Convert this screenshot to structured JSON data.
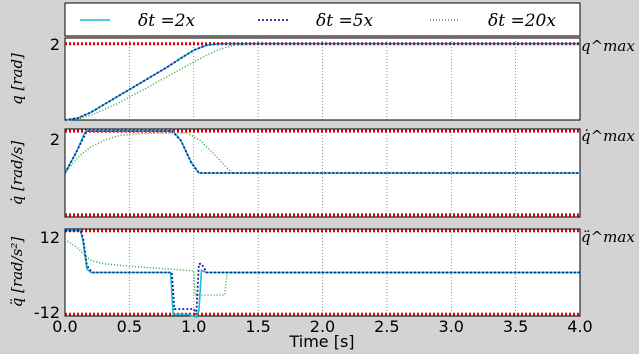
{
  "colors": {
    "background": "#d3d3d3",
    "plot_background": "#ffffff",
    "dt2": "#17becf",
    "dt5": "#1f1f9f",
    "dt20": "#2ca02c",
    "limit": "#dd0000",
    "grid": "#666666"
  },
  "legend": {
    "entries": [
      {
        "label": "δt =2x",
        "style": "solid",
        "color": "#17becf"
      },
      {
        "label": "δt =5x",
        "style": "dotted",
        "color": "#1f1f9f"
      },
      {
        "label": "δt =20x",
        "style": "dotted",
        "color": "#2ca02c"
      }
    ]
  },
  "xaxis": {
    "label": "Time [s]",
    "ticks": [
      "0.0",
      "0.5",
      "1.0",
      "1.5",
      "2.0",
      "2.5",
      "3.0",
      "3.5",
      "4.0"
    ],
    "range": [
      0,
      4
    ]
  },
  "chart_data": [
    {
      "type": "line",
      "ylabel": "q [rad]",
      "yticks": [
        "2"
      ],
      "ylim": [
        0,
        2.15
      ],
      "limit_label": "q^max",
      "limits": [
        2.0
      ],
      "grid": "vertical",
      "series": [
        {
          "name": "δt =2x",
          "x": [
            0,
            0.1,
            0.2,
            0.4,
            0.6,
            0.8,
            0.9,
            1.0,
            1.1,
            1.2,
            4.0
          ],
          "y": [
            0,
            0.05,
            0.2,
            0.6,
            1.0,
            1.4,
            1.62,
            1.83,
            1.96,
            2.0,
            2.0
          ]
        },
        {
          "name": "δt =5x",
          "x": [
            0,
            0.1,
            0.2,
            0.4,
            0.6,
            0.8,
            0.9,
            1.0,
            1.1,
            1.2,
            4.0
          ],
          "y": [
            0,
            0.05,
            0.2,
            0.6,
            1.0,
            1.4,
            1.62,
            1.83,
            1.96,
            2.0,
            2.0
          ]
        },
        {
          "name": "δt =20x",
          "x": [
            0,
            0.1,
            0.2,
            0.4,
            0.6,
            0.8,
            1.0,
            1.1,
            1.2,
            1.3,
            1.4,
            4.0
          ],
          "y": [
            0,
            0.02,
            0.12,
            0.42,
            0.78,
            1.15,
            1.52,
            1.7,
            1.85,
            1.95,
            2.0,
            2.0
          ]
        }
      ]
    },
    {
      "type": "line",
      "ylabel": "q̇ [rad/s]",
      "yticks": [
        "2"
      ],
      "ylim": [
        -2.1,
        2.1
      ],
      "limit_label": "q̇^max",
      "limits": [
        2.0,
        -2.0
      ],
      "grid": "vertical",
      "series": [
        {
          "name": "δt =2x",
          "x": [
            0,
            0.08,
            0.16,
            0.84,
            0.9,
            0.98,
            1.04,
            4.0
          ],
          "y": [
            0.0,
            0.9,
            2.0,
            2.0,
            1.55,
            0.5,
            0.0,
            0.0
          ]
        },
        {
          "name": "δt =5x",
          "x": [
            0,
            0.08,
            0.17,
            0.83,
            0.9,
            0.98,
            1.04,
            4.0
          ],
          "y": [
            0.0,
            0.9,
            2.0,
            2.0,
            1.55,
            0.5,
            0.0,
            0.0
          ]
        },
        {
          "name": "δt =20x",
          "x": [
            0,
            0.1,
            0.2,
            0.3,
            0.4,
            0.5,
            0.7,
            0.95,
            1.05,
            1.15,
            1.25,
            1.3,
            4.0
          ],
          "y": [
            0.0,
            0.75,
            1.25,
            1.55,
            1.75,
            1.85,
            1.9,
            1.9,
            1.55,
            0.95,
            0.3,
            0.0,
            0.0
          ]
        }
      ]
    },
    {
      "type": "line",
      "ylabel": "q̈ [rad/s²]",
      "yticks": [
        "12",
        "-12"
      ],
      "ylim": [
        -12.5,
        12.5
      ],
      "limit_label": "q̈^max",
      "limits": [
        12,
        -12
      ],
      "grid": "vertical",
      "series": [
        {
          "name": "δt =2x",
          "x": [
            0,
            0.12,
            0.14,
            0.17,
            0.2,
            0.5,
            0.82,
            0.84,
            0.95,
            1.02,
            1.04,
            1.06,
            1.1,
            4.0
          ],
          "y": [
            12,
            12,
            9,
            1,
            0,
            0,
            0,
            -12,
            -12,
            -12.8,
            -11,
            0.6,
            0,
            0
          ]
        },
        {
          "name": "δt =5x",
          "x": [
            0,
            0.12,
            0.14,
            0.17,
            0.21,
            0.5,
            0.83,
            0.85,
            1.0,
            1.02,
            1.04,
            1.06,
            1.1,
            4.0
          ],
          "y": [
            12,
            12,
            10,
            2,
            0,
            0,
            0,
            -10.5,
            -10.5,
            -12,
            2.5,
            2.5,
            0,
            0
          ]
        },
        {
          "name": "δt =20x",
          "x": [
            0,
            0.1,
            0.15,
            0.2,
            0.3,
            0.5,
            0.8,
            1.0,
            1.01,
            1.24,
            1.26,
            1.3,
            4.0
          ],
          "y": [
            9.5,
            7.0,
            5.0,
            3.5,
            2.5,
            1.8,
            1.0,
            0.5,
            -6.5,
            -6.5,
            0,
            0,
            0
          ]
        }
      ]
    }
  ]
}
